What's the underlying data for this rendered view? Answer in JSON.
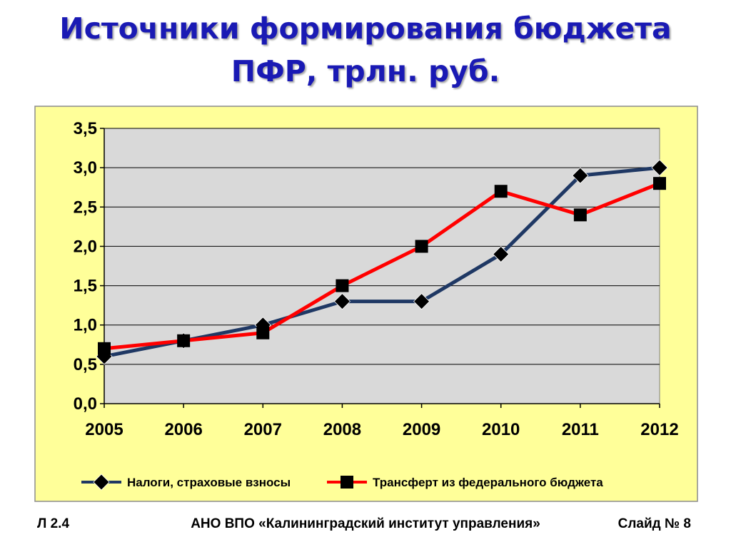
{
  "title": {
    "line1": "Источники формирования бюджета",
    "line2": "ПФР, трлн. руб."
  },
  "colors": {
    "title": "#1a1ab4",
    "outer_background": "#ffff99",
    "plot_background": "#d9d9d9",
    "series1": "#1f3864",
    "series2": "#ff0000",
    "marker": "#000000"
  },
  "chart_data": {
    "type": "line",
    "x": [
      "2005",
      "2006",
      "2007",
      "2008",
      "2009",
      "2010",
      "2011",
      "2012"
    ],
    "ylim": [
      0,
      3.5
    ],
    "yticks": [
      "0,0",
      "0,5",
      "1,0",
      "1,5",
      "2,0",
      "2,5",
      "3,0",
      "3,5"
    ],
    "grid": true,
    "legend_position": "bottom",
    "series": [
      {
        "name": "Налоги, страховые взносы",
        "marker": "diamond",
        "values": [
          0.6,
          0.8,
          1.0,
          1.3,
          1.3,
          1.9,
          2.9,
          3.0
        ]
      },
      {
        "name": "Трансферт из федерального бюджета",
        "marker": "square",
        "values": [
          0.7,
          0.8,
          0.9,
          1.5,
          2.0,
          2.7,
          2.4,
          2.8
        ]
      }
    ]
  },
  "footer": {
    "left": "Л 2.4",
    "center": "АНО ВПО «Калининградский институт управления»",
    "right": "Слайд № 8"
  }
}
